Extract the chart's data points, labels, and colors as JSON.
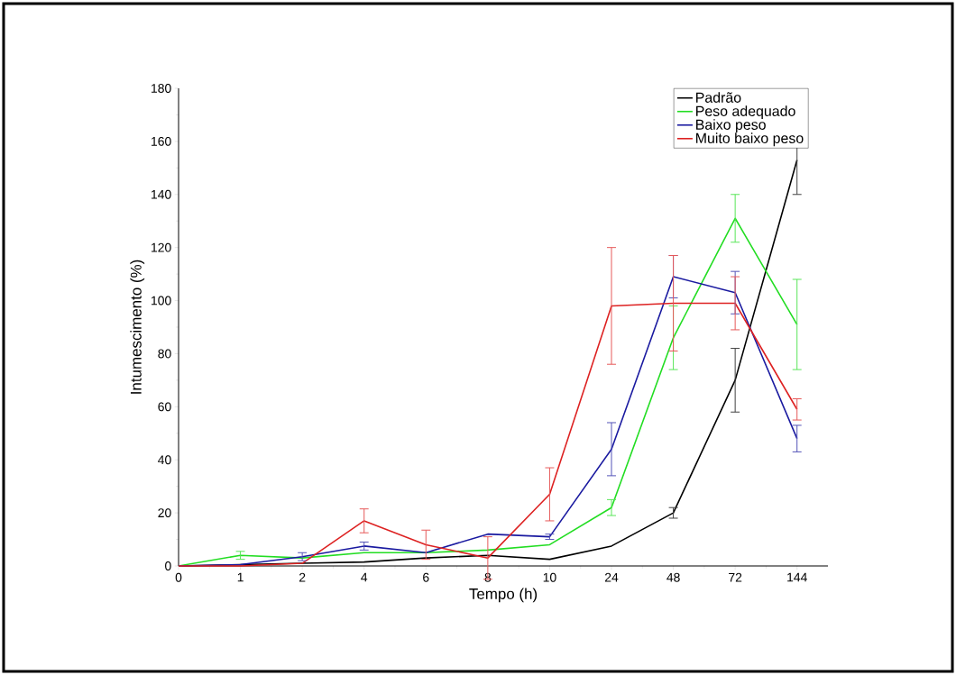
{
  "chart_data": {
    "type": "line",
    "xlabel": "Tempo (h)",
    "ylabel": "Intumescimento (%)",
    "categories": [
      "0",
      "1",
      "2",
      "4",
      "6",
      "8",
      "10",
      "24",
      "48",
      "72",
      "144"
    ],
    "ylim": [
      0,
      180
    ],
    "yticks": [
      0,
      20,
      40,
      60,
      80,
      100,
      120,
      140,
      160,
      180
    ],
    "legend": "top right",
    "grid": false,
    "series": [
      {
        "name": "Padrão",
        "color": "#000000",
        "values": [
          0,
          0.5,
          1,
          1.5,
          3,
          4,
          2.5,
          7.5,
          20,
          70,
          153
        ],
        "errors": [
          null,
          null,
          null,
          null,
          null,
          null,
          null,
          null,
          2,
          12,
          13
        ]
      },
      {
        "name": "Peso adequado",
        "color": "#22dd22",
        "values": [
          0,
          4,
          3,
          5,
          5,
          6,
          8,
          22,
          86,
          131,
          91
        ],
        "errors": [
          null,
          1.5,
          null,
          null,
          null,
          null,
          null,
          3,
          12,
          9,
          17
        ]
      },
      {
        "name": "Baixo peso",
        "color": "#1a1aa0",
        "values": [
          0,
          0.5,
          3.5,
          7.5,
          5,
          12,
          11,
          44,
          109,
          103,
          48
        ],
        "errors": [
          null,
          null,
          1.5,
          1.5,
          null,
          null,
          1,
          10,
          8,
          8,
          5
        ]
      },
      {
        "name": "Muito baixo peso",
        "color": "#dd2222",
        "values": [
          0,
          0,
          1,
          17,
          8,
          3,
          27,
          98,
          99,
          99,
          59
        ],
        "errors": [
          null,
          null,
          null,
          4.5,
          5.5,
          8,
          10,
          22,
          18,
          10,
          4
        ]
      }
    ]
  }
}
